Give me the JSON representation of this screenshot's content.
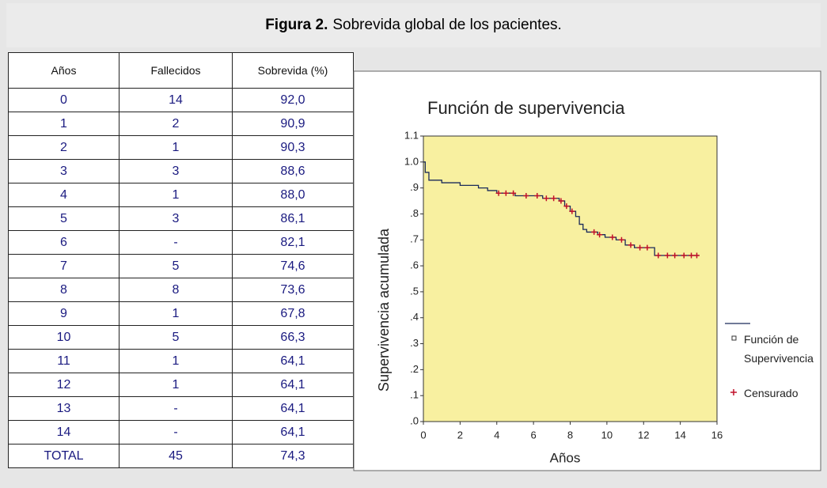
{
  "figure_label": "Figura 2.",
  "caption": "Sobrevida global de los pacientes.",
  "table": {
    "header": [
      "Años",
      "Fallecidos",
      "Sobrevida (%)"
    ],
    "rows": [
      [
        "0",
        "14",
        "92,0"
      ],
      [
        "1",
        "2",
        "90,9"
      ],
      [
        "2",
        "1",
        "90,3"
      ],
      [
        "3",
        "3",
        "88,6"
      ],
      [
        "4",
        "1",
        "88,0"
      ],
      [
        "5",
        "3",
        "86,1"
      ],
      [
        "6",
        "-",
        "82,1"
      ],
      [
        "7",
        "5",
        "74,6"
      ],
      [
        "8",
        "8",
        "73,6"
      ],
      [
        "9",
        "1",
        "67,8"
      ],
      [
        "10",
        "5",
        "66,3"
      ],
      [
        "11",
        "1",
        "64,1"
      ],
      [
        "12",
        "1",
        "64,1"
      ],
      [
        "13",
        "-",
        "64,1"
      ],
      [
        "14",
        "-",
        "64,1"
      ],
      [
        "TOTAL",
        "45",
        "74,3"
      ]
    ]
  },
  "chart_data": {
    "type": "step",
    "title": "Función de supervivencia",
    "x_label": "Años",
    "y_label": "Supervivencia acumulada",
    "xlim": [
      0,
      16
    ],
    "xticks": [
      0,
      2,
      4,
      6,
      8,
      10,
      12,
      14,
      16
    ],
    "ylim": [
      0,
      1.1
    ],
    "yticks": [
      {
        "value": 0,
        "label": ".0"
      },
      {
        "value": 0.1,
        "label": ".1"
      },
      {
        "value": 0.2,
        "label": ".2"
      },
      {
        "value": 0.3,
        "label": ".3"
      },
      {
        "value": 0.4,
        "label": ".4"
      },
      {
        "value": 0.5,
        "label": ".5"
      },
      {
        "value": 0.6,
        "label": ".6"
      },
      {
        "value": 0.7,
        "label": ".7"
      },
      {
        "value": 0.8,
        "label": ".8"
      },
      {
        "value": 0.9,
        "label": ".9"
      },
      {
        "value": 1,
        "label": "1.0"
      },
      1.1
    ],
    "plot_background": "#f8f0a0",
    "series": [
      {
        "name": "Función de Supervivencia",
        "type": "step",
        "color": "#1a2a5a",
        "x": [
          0,
          0.1,
          0.3,
          1,
          2,
          3,
          3.5,
          4,
          5,
          6.5,
          7.4,
          7.7,
          8,
          8.3,
          8.5,
          8.7,
          8.9,
          9.5,
          9.9,
          10.5,
          11,
          11.5,
          12.6,
          15
        ],
        "values": [
          1.0,
          0.96,
          0.93,
          0.92,
          0.91,
          0.9,
          0.89,
          0.88,
          0.87,
          0.86,
          0.85,
          0.83,
          0.81,
          0.79,
          0.76,
          0.74,
          0.73,
          0.72,
          0.71,
          0.7,
          0.68,
          0.67,
          0.64,
          0.64
        ]
      },
      {
        "name": "Censurado",
        "type": "scatter",
        "color": "#c0102a",
        "x": [
          4.1,
          4.5,
          4.9,
          5.6,
          6.2,
          6.7,
          7.1,
          7.5,
          7.8,
          8.1,
          9.3,
          9.6,
          10.3,
          10.8,
          11.3,
          11.8,
          12.2,
          12.8,
          13.3,
          13.7,
          14.2,
          14.6,
          14.9
        ],
        "values": [
          0.88,
          0.88,
          0.88,
          0.87,
          0.87,
          0.86,
          0.86,
          0.85,
          0.83,
          0.81,
          0.73,
          0.72,
          0.71,
          0.7,
          0.68,
          0.67,
          0.67,
          0.64,
          0.64,
          0.64,
          0.64,
          0.64,
          0.64
        ]
      }
    ]
  }
}
